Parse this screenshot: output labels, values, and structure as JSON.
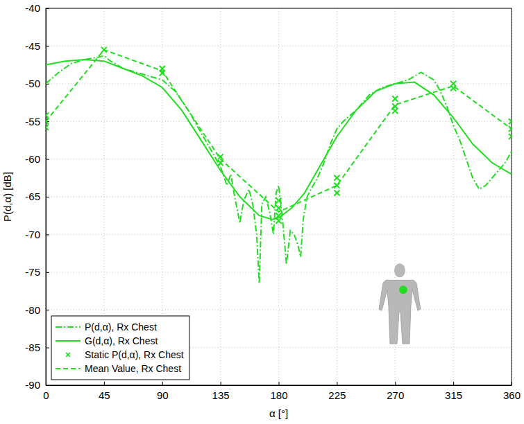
{
  "chart_data": {
    "type": "line",
    "x_label": "α [°]",
    "y_label": "P(d,α) [dB]",
    "xlim": [
      0,
      360
    ],
    "xticks": [
      0,
      45,
      90,
      135,
      180,
      225,
      270,
      315,
      360
    ],
    "ylim": [
      -90,
      -40
    ],
    "yticks": [
      -90,
      -85,
      -80,
      -75,
      -70,
      -65,
      -60,
      -55,
      -50,
      -45,
      -40
    ],
    "grid": true,
    "legend": "lower left",
    "series": [
      {
        "name": "P(d,α), Rx Chest",
        "type": "line",
        "color": "#22dd22",
        "line_style": "dashdot",
        "x": [
          0,
          10,
          20,
          30,
          40,
          45,
          50,
          60,
          70,
          80,
          90,
          100,
          110,
          120,
          130,
          135,
          140,
          143,
          146,
          150,
          153,
          157,
          160,
          163,
          165,
          167,
          170,
          173,
          176,
          178,
          180,
          183,
          186,
          189,
          192,
          195,
          197,
          199,
          202,
          205,
          210,
          215,
          220,
          225,
          230,
          240,
          250,
          260,
          270,
          280,
          290,
          300,
          305,
          310,
          315,
          320,
          325,
          330,
          335,
          340,
          345,
          350,
          355,
          360
        ],
        "values": [
          -50,
          -48.5,
          -47.3,
          -46.8,
          -46.5,
          -46.3,
          -47,
          -48,
          -48.5,
          -49,
          -49.5,
          -51,
          -53.5,
          -56.5,
          -59.5,
          -61,
          -63.5,
          -62,
          -65,
          -68.5,
          -65.5,
          -64,
          -66,
          -70,
          -76.5,
          -66,
          -65,
          -67,
          -70,
          -64.5,
          -63.5,
          -68,
          -74,
          -69.5,
          -70,
          -71.5,
          -73,
          -68,
          -65,
          -64,
          -62.5,
          -60.5,
          -58,
          -56,
          -55,
          -53.5,
          -51.5,
          -50.5,
          -50,
          -49.5,
          -48.5,
          -49.5,
          -51,
          -53,
          -55.5,
          -57.5,
          -60,
          -62.5,
          -64,
          -63.5,
          -62.5,
          -61.5,
          -60.5,
          -59
        ]
      },
      {
        "name": "G(d,α), Rx Chest",
        "type": "line",
        "color": "#22dd22",
        "line_style": "solid",
        "x": [
          0,
          15,
          30,
          45,
          60,
          75,
          90,
          105,
          120,
          135,
          150,
          165,
          175,
          180,
          190,
          200,
          210,
          225,
          240,
          255,
          270,
          285,
          300,
          315,
          330,
          345,
          360
        ],
        "values": [
          -47.5,
          -47,
          -46.8,
          -47,
          -48,
          -49,
          -50.5,
          -53.5,
          -57.5,
          -61.5,
          -65,
          -67.5,
          -68,
          -67.8,
          -66.5,
          -64.5,
          -61.5,
          -57,
          -53.5,
          -51,
          -50,
          -49.8,
          -51.5,
          -54.5,
          -58,
          -60.5,
          -62
        ]
      },
      {
        "name": "Static P(d,α), Rx Chest",
        "type": "scatter",
        "color": "#22dd22",
        "marker": "x",
        "x": [
          0,
          0,
          0,
          45,
          90,
          90,
          135,
          135,
          180,
          180,
          180,
          180,
          225,
          225,
          225,
          270,
          270,
          270,
          315,
          315,
          360,
          360,
          360
        ],
        "values": [
          -54.2,
          -55,
          -55.8,
          -45.5,
          -48,
          -48.6,
          -59.7,
          -60.5,
          -65.5,
          -66.5,
          -67.5,
          -68.2,
          -62.5,
          -63.5,
          -64.5,
          -52,
          -53,
          -53.6,
          -50,
          -50.6,
          -55,
          -56,
          -57
        ]
      },
      {
        "name": "Mean Value, Rx Chest",
        "type": "line",
        "color": "#22dd22",
        "line_style": "dashed",
        "x": [
          0,
          45,
          90,
          135,
          180,
          225,
          270,
          315,
          360
        ],
        "values": [
          -55,
          -45.5,
          -48.3,
          -60,
          -67,
          -63.5,
          -52.8,
          -50.3,
          -56
        ]
      }
    ]
  }
}
